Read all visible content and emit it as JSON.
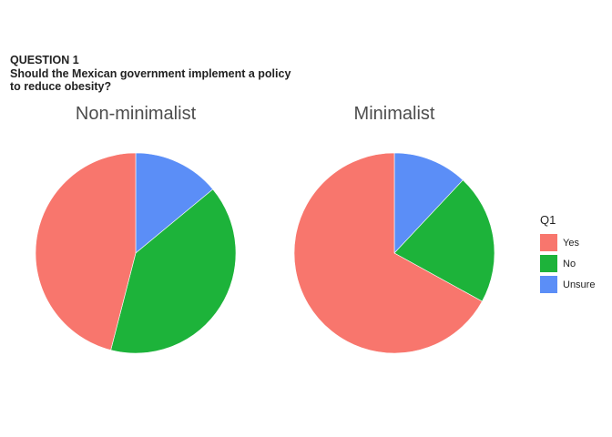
{
  "question": {
    "number": "QUESTION 1",
    "line1": "Should the Mexican government implement a policy",
    "line2": "to reduce obesity?"
  },
  "legend": {
    "title": "Q1",
    "items": [
      {
        "label": "Yes",
        "color": "#F8766D"
      },
      {
        "label": "No",
        "color": "#1DB33A"
      },
      {
        "label": "Unsure",
        "color": "#5B8EF7"
      }
    ]
  },
  "chart_data": [
    {
      "type": "pie",
      "title": "Non-minimalist",
      "categories": [
        "Unsure",
        "No",
        "Yes"
      ],
      "values": [
        14,
        40,
        46
      ]
    },
    {
      "type": "pie",
      "title": "Minimalist",
      "categories": [
        "Unsure",
        "No",
        "Yes"
      ],
      "values": [
        12,
        21,
        67
      ]
    }
  ]
}
